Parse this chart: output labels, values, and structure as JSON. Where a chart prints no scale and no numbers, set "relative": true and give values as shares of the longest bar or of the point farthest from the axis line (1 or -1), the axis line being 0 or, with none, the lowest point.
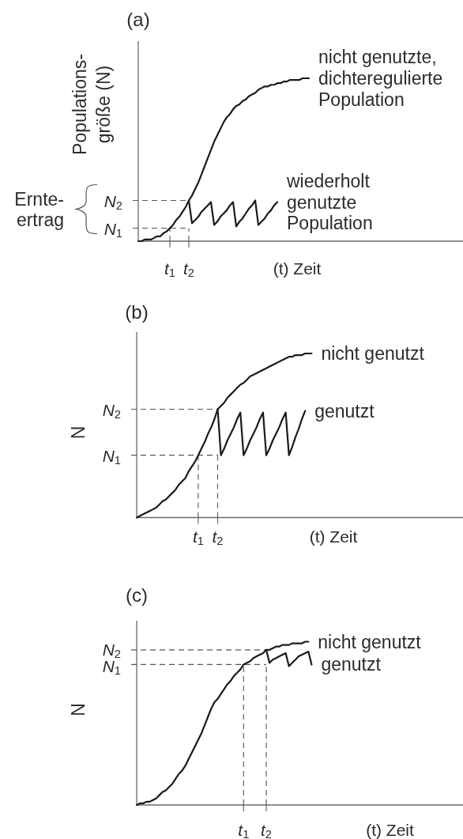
{
  "chart_data": [
    {
      "type": "line",
      "title": "(a)",
      "ylabel": "Populations-\ngröße (N)",
      "xlabel": "(t) Zeit",
      "relative": true,
      "categories": [
        null,
        null,
        null,
        null,
        null,
        null,
        null,
        null,
        null,
        null,
        "t$_{1}$",
        null,
        null,
        null,
        null,
        null,
        "t$_{2}$",
        null,
        null,
        null,
        null,
        null,
        null,
        null,
        null,
        null,
        null,
        null,
        null,
        null,
        null,
        null,
        null,
        null,
        null,
        null,
        null,
        null,
        null,
        null,
        null,
        null,
        null,
        null,
        null,
        null,
        null,
        null,
        null,
        null,
        null,
        null,
        null,
        null,
        null
      ],
      "series": [
        {
          "name": "nicht genutzte,\ndichteregulierte\nPopulation",
          "color": "#1a1a1a",
          "values": [
            0,
            0,
            0.01,
            0.01,
            0.01,
            0.02,
            0.03,
            0.03,
            0.05,
            0.06,
            0.08,
            0.1,
            0.13,
            0.15,
            0.18,
            0.21,
            0.25,
            0.28,
            0.32,
            0.36,
            0.41,
            0.46,
            0.51,
            0.56,
            0.61,
            0.65,
            0.69,
            0.73,
            0.76,
            0.78,
            0.81,
            0.83,
            0.84,
            0.86,
            0.87,
            0.89,
            0.9,
            0.91,
            0.93,
            0.94,
            0.95,
            0.95,
            0.96,
            0.96,
            0.97,
            0.97,
            0.98,
            0.98,
            0.99,
            0.99,
            0.99,
            0.99,
            1,
            1,
            1
          ]
        },
        {
          "name": "wiederholt\ngenutzte\nPopulation",
          "color": "#1a1a1a",
          "values": [
            null,
            null,
            null,
            null,
            null,
            null,
            null,
            null,
            null,
            null,
            null,
            null,
            null,
            null,
            null,
            null,
            0.25,
            0.11,
            0.13,
            0.15,
            0.18,
            0.2,
            0.22,
            0.24,
            0.1,
            0.12,
            0.15,
            0.17,
            0.19,
            0.22,
            0.24,
            0.09,
            0.12,
            0.14,
            0.17,
            0.2,
            0.22,
            0.25,
            0.1,
            0.12,
            0.14,
            0.17,
            0.19,
            0.22,
            0.24,
            null,
            null,
            null,
            null,
            null,
            null,
            null,
            null,
            null,
            null
          ]
        }
      ],
      "ref_lines": [
        {
          "axis": "x",
          "value": "t$_{1}$",
          "line_style": "dashed"
        },
        {
          "axis": "x",
          "value": "t$_{2}$",
          "line_style": "dashed"
        },
        {
          "axis": "y",
          "value": 0.08,
          "label": "N$_{1}$",
          "line_style": "dashed"
        },
        {
          "axis": "y",
          "value": 0.25,
          "label": "N$_{2}$",
          "line_style": "dashed"
        }
      ],
      "annotations": [
        "Ernte-\nertrag"
      ]
    },
    {
      "type": "line",
      "title": "(b)",
      "ylabel": "N",
      "xlabel": "(t) Zeit",
      "relative": true,
      "categories": [
        null,
        null,
        null,
        null,
        null,
        null,
        null,
        null,
        null,
        null,
        null,
        null,
        null,
        null,
        null,
        null,
        null,
        null,
        null,
        "t$_{1}$",
        null,
        null,
        null,
        null,
        null,
        "t$_{2}$",
        null,
        null,
        null,
        null,
        null,
        null,
        null,
        null,
        null,
        null,
        null,
        null,
        null,
        null,
        null,
        null,
        null,
        null,
        null,
        null,
        null,
        null,
        null,
        null,
        null,
        null,
        null,
        null,
        null
      ],
      "series": [
        {
          "name": "nicht genutzt",
          "color": "#1a1a1a",
          "values": [
            0,
            0.01,
            0.02,
            0.03,
            0.04,
            0.05,
            0.06,
            0.08,
            0.1,
            0.11,
            0.13,
            0.15,
            0.17,
            0.2,
            0.22,
            0.24,
            0.28,
            0.31,
            0.34,
            0.38,
            0.42,
            0.46,
            0.51,
            0.55,
            0.6,
            0.66,
            0.68,
            0.7,
            0.73,
            0.75,
            0.77,
            0.79,
            0.81,
            0.82,
            0.84,
            0.86,
            0.87,
            0.88,
            0.89,
            0.9,
            0.91,
            0.92,
            0.93,
            0.94,
            0.95,
            0.96,
            0.97,
            0.98,
            0.98,
            0.99,
            0.99,
            0.99,
            1,
            1,
            1
          ]
        },
        {
          "name": "genutzt",
          "color": "#1a1a1a",
          "values": [
            null,
            null,
            null,
            null,
            null,
            null,
            null,
            null,
            null,
            null,
            null,
            null,
            null,
            null,
            null,
            null,
            null,
            null,
            null,
            null,
            null,
            null,
            null,
            null,
            null,
            0.66,
            0.38,
            0.42,
            0.47,
            0.51,
            0.55,
            0.6,
            0.64,
            0.38,
            0.42,
            0.47,
            0.51,
            0.55,
            0.6,
            0.64,
            0.38,
            0.42,
            0.47,
            0.51,
            0.55,
            0.6,
            0.64,
            0.38,
            0.43,
            0.49,
            0.54,
            0.6,
            0.65,
            null,
            null
          ]
        }
      ],
      "ref_lines": [
        {
          "axis": "x",
          "value": "t$_{1}$",
          "line_style": "dashed"
        },
        {
          "axis": "x",
          "value": "t$_{2}$",
          "line_style": "dashed"
        },
        {
          "axis": "y",
          "value": 0.38,
          "label": "N$_{1}$",
          "line_style": "dashed"
        },
        {
          "axis": "y",
          "value": 0.66,
          "label": "N$_{2}$",
          "line_style": "dashed"
        }
      ]
    },
    {
      "type": "line",
      "title": "(c)",
      "ylabel": "N",
      "xlabel": "(t) Zeit",
      "relative": true,
      "categories": [
        null,
        null,
        null,
        null,
        null,
        null,
        null,
        null,
        null,
        null,
        null,
        null,
        null,
        null,
        null,
        null,
        null,
        null,
        null,
        null,
        null,
        null,
        null,
        null,
        null,
        null,
        null,
        null,
        null,
        null,
        null,
        null,
        null,
        "t$_{1}$",
        null,
        null,
        null,
        null,
        null,
        null,
        "t$_{2}$",
        null,
        null,
        null,
        null,
        null,
        null,
        null,
        null,
        null,
        null,
        null,
        null,
        null,
        null
      ],
      "series": [
        {
          "name": "nicht genutzt",
          "color": "#1a1a1a",
          "values": [
            0,
            0.01,
            0.01,
            0.02,
            0.02,
            0.03,
            0.04,
            0.06,
            0.08,
            0.09,
            0.11,
            0.13,
            0.16,
            0.19,
            0.21,
            0.24,
            0.28,
            0.32,
            0.36,
            0.4,
            0.44,
            0.49,
            0.54,
            0.59,
            0.63,
            0.65,
            0.68,
            0.71,
            0.74,
            0.76,
            0.79,
            0.81,
            0.83,
            0.86,
            0.87,
            0.88,
            0.9,
            0.91,
            0.92,
            0.93,
            0.95,
            0.95,
            0.96,
            0.97,
            0.97,
            0.98,
            0.98,
            0.98,
            0.99,
            0.99,
            0.99,
            0.99,
            1,
            1,
            null
          ]
        },
        {
          "name": "genutzt",
          "color": "#1a1a1a",
          "values": [
            null,
            null,
            null,
            null,
            null,
            null,
            null,
            null,
            null,
            null,
            null,
            null,
            null,
            null,
            null,
            null,
            null,
            null,
            null,
            null,
            null,
            null,
            null,
            null,
            null,
            null,
            null,
            null,
            null,
            null,
            null,
            null,
            null,
            null,
            null,
            null,
            null,
            null,
            null,
            null,
            0.95,
            0.87,
            0.89,
            0.9,
            0.91,
            0.92,
            0.93,
            0.85,
            0.87,
            0.89,
            0.91,
            0.92,
            0.93,
            0.94,
            0.86
          ]
        }
      ],
      "ref_lines": [
        {
          "axis": "x",
          "value": "t$_{1}$",
          "line_style": "dashed"
        },
        {
          "axis": "x",
          "value": "t$_{2}$",
          "line_style": "dashed"
        },
        {
          "axis": "y",
          "value": 0.86,
          "label": "N$_{1}$",
          "line_style": "dashed"
        },
        {
          "axis": "y",
          "value": 0.95,
          "label": "N$_{2}$",
          "line_style": "dashed"
        }
      ]
    }
  ]
}
